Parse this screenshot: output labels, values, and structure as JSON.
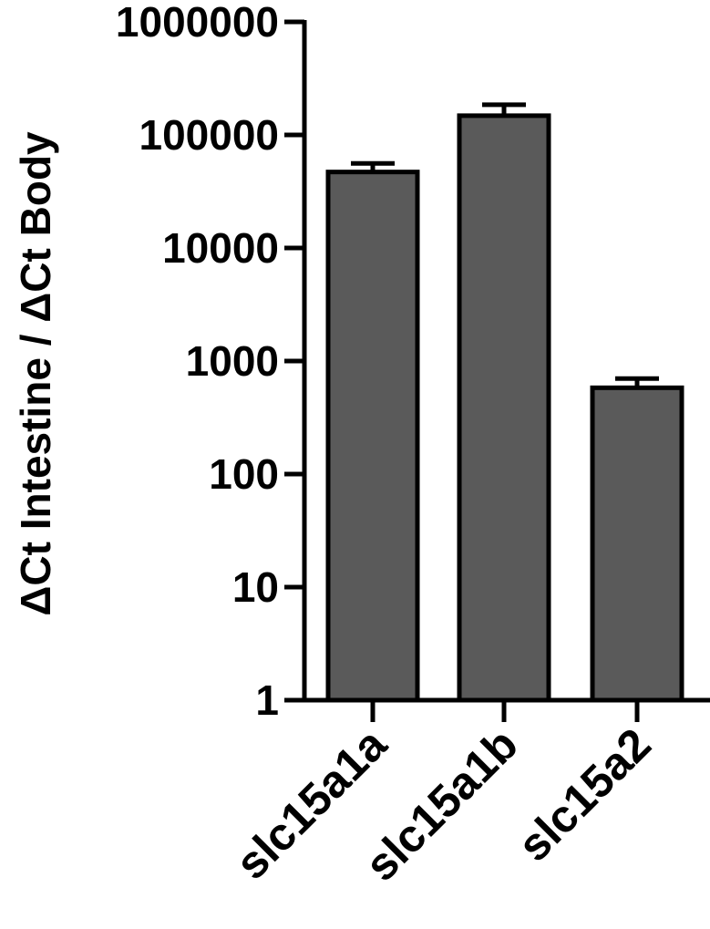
{
  "chart_data": {
    "type": "bar",
    "title": "",
    "xlabel": "",
    "ylabel": "ΔCt Intestine / ΔCt Body",
    "yscale": "log",
    "ylim": [
      1,
      1000000
    ],
    "yticks": [
      1,
      10,
      100,
      1000,
      10000,
      100000,
      1000000
    ],
    "ytick_labels": [
      "1",
      "10",
      "100",
      "1000",
      "10000",
      "100000",
      "1000000"
    ],
    "categories": [
      "slc15a1a",
      "slc15a1b",
      "slc15a2"
    ],
    "values": [
      47000,
      148000,
      580
    ],
    "error_upper": [
      56000,
      185000,
      700
    ],
    "grid": false,
    "legend": "none",
    "colors": {
      "bar_fill": "#5a5a5a",
      "bar_stroke": "#000000",
      "axis": "#000000"
    }
  }
}
